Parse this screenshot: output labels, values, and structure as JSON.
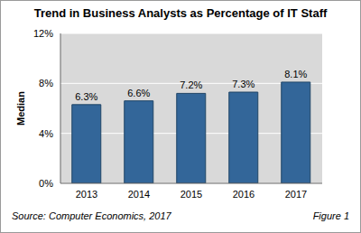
{
  "chart_data": {
    "type": "bar",
    "title": "Trend in Business Analysts as Percentage of IT Staff",
    "ylabel": "Median",
    "categories": [
      "2013",
      "2014",
      "2015",
      "2016",
      "2017"
    ],
    "values": [
      6.3,
      6.6,
      7.2,
      7.3,
      8.1
    ],
    "value_labels": [
      "6.3%",
      "6.6%",
      "7.2%",
      "7.3%",
      "8.1%"
    ],
    "color": "#336699",
    "ylim": [
      0,
      12
    ],
    "yticks": [
      {
        "value": 0,
        "label": "0%"
      },
      {
        "value": 4,
        "label": "4%"
      },
      {
        "value": 8,
        "label": "8%"
      },
      {
        "value": 12,
        "label": "12%"
      }
    ],
    "grid": true,
    "data_labels": true,
    "annotations": [
      "Source: Computer Economics, 2017",
      "Figure 1"
    ]
  }
}
